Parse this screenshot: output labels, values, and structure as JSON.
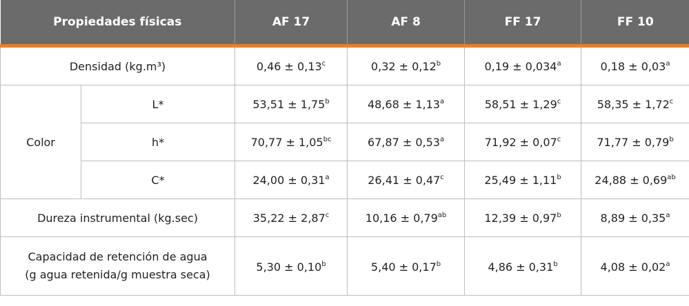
{
  "table": {
    "header": [
      "Propiedades físicas",
      "AF 17",
      "AF 8",
      "FF 17",
      "FF 10"
    ],
    "rows": [
      {
        "label": "Densidad (kg.m³)",
        "cells": [
          [
            "0,46 ± 0,13",
            "c"
          ],
          [
            "0,32 ± 0,12",
            "b"
          ],
          [
            "0,19 ± 0,034",
            "a"
          ],
          [
            "0,18 ± 0,03",
            "a"
          ]
        ]
      },
      {
        "group": "Color",
        "sublabel": "L*",
        "cells": [
          [
            "53,51 ± 1,75",
            "b"
          ],
          [
            "48,68 ± 1,13",
            "a"
          ],
          [
            "58,51 ± 1,29",
            "c"
          ],
          [
            "58,35 ± 1,72",
            "c"
          ]
        ]
      },
      {
        "sublabel": "h*",
        "cells": [
          [
            "70,77 ± 1,05",
            "bc"
          ],
          [
            "67,87 ± 0,53",
            "a"
          ],
          [
            "71,92 ± 0,07",
            "c"
          ],
          [
            "71,77 ± 0,79",
            "b"
          ]
        ]
      },
      {
        "sublabel": "C*",
        "cells": [
          [
            "24,00 ± 0,31",
            "a"
          ],
          [
            "26,41 ± 0,47",
            "c"
          ],
          [
            "25,49 ± 1,11",
            "b"
          ],
          [
            "24,88 ± 0,69",
            "ab"
          ]
        ]
      },
      {
        "label": "Dureza instrumental (kg.sec)",
        "cells": [
          [
            "35,22 ± 2,87",
            "c"
          ],
          [
            "10,16 ± 0,79",
            "ab"
          ],
          [
            "12,39 ± 0,97",
            "b"
          ],
          [
            "8,89 ± 0,35",
            "a"
          ]
        ]
      },
      {
        "label": [
          "Capacidad de retención de agua",
          "(g agua retenida/g muestra seca)"
        ],
        "cells": [
          [
            "5,30 ± 0,10",
            "b"
          ],
          [
            "5,40 ± 0,17",
            "b"
          ],
          [
            "4,86 ± 0,31",
            "b"
          ],
          [
            "4,08 ± 0,02",
            "a"
          ]
        ]
      }
    ]
  }
}
